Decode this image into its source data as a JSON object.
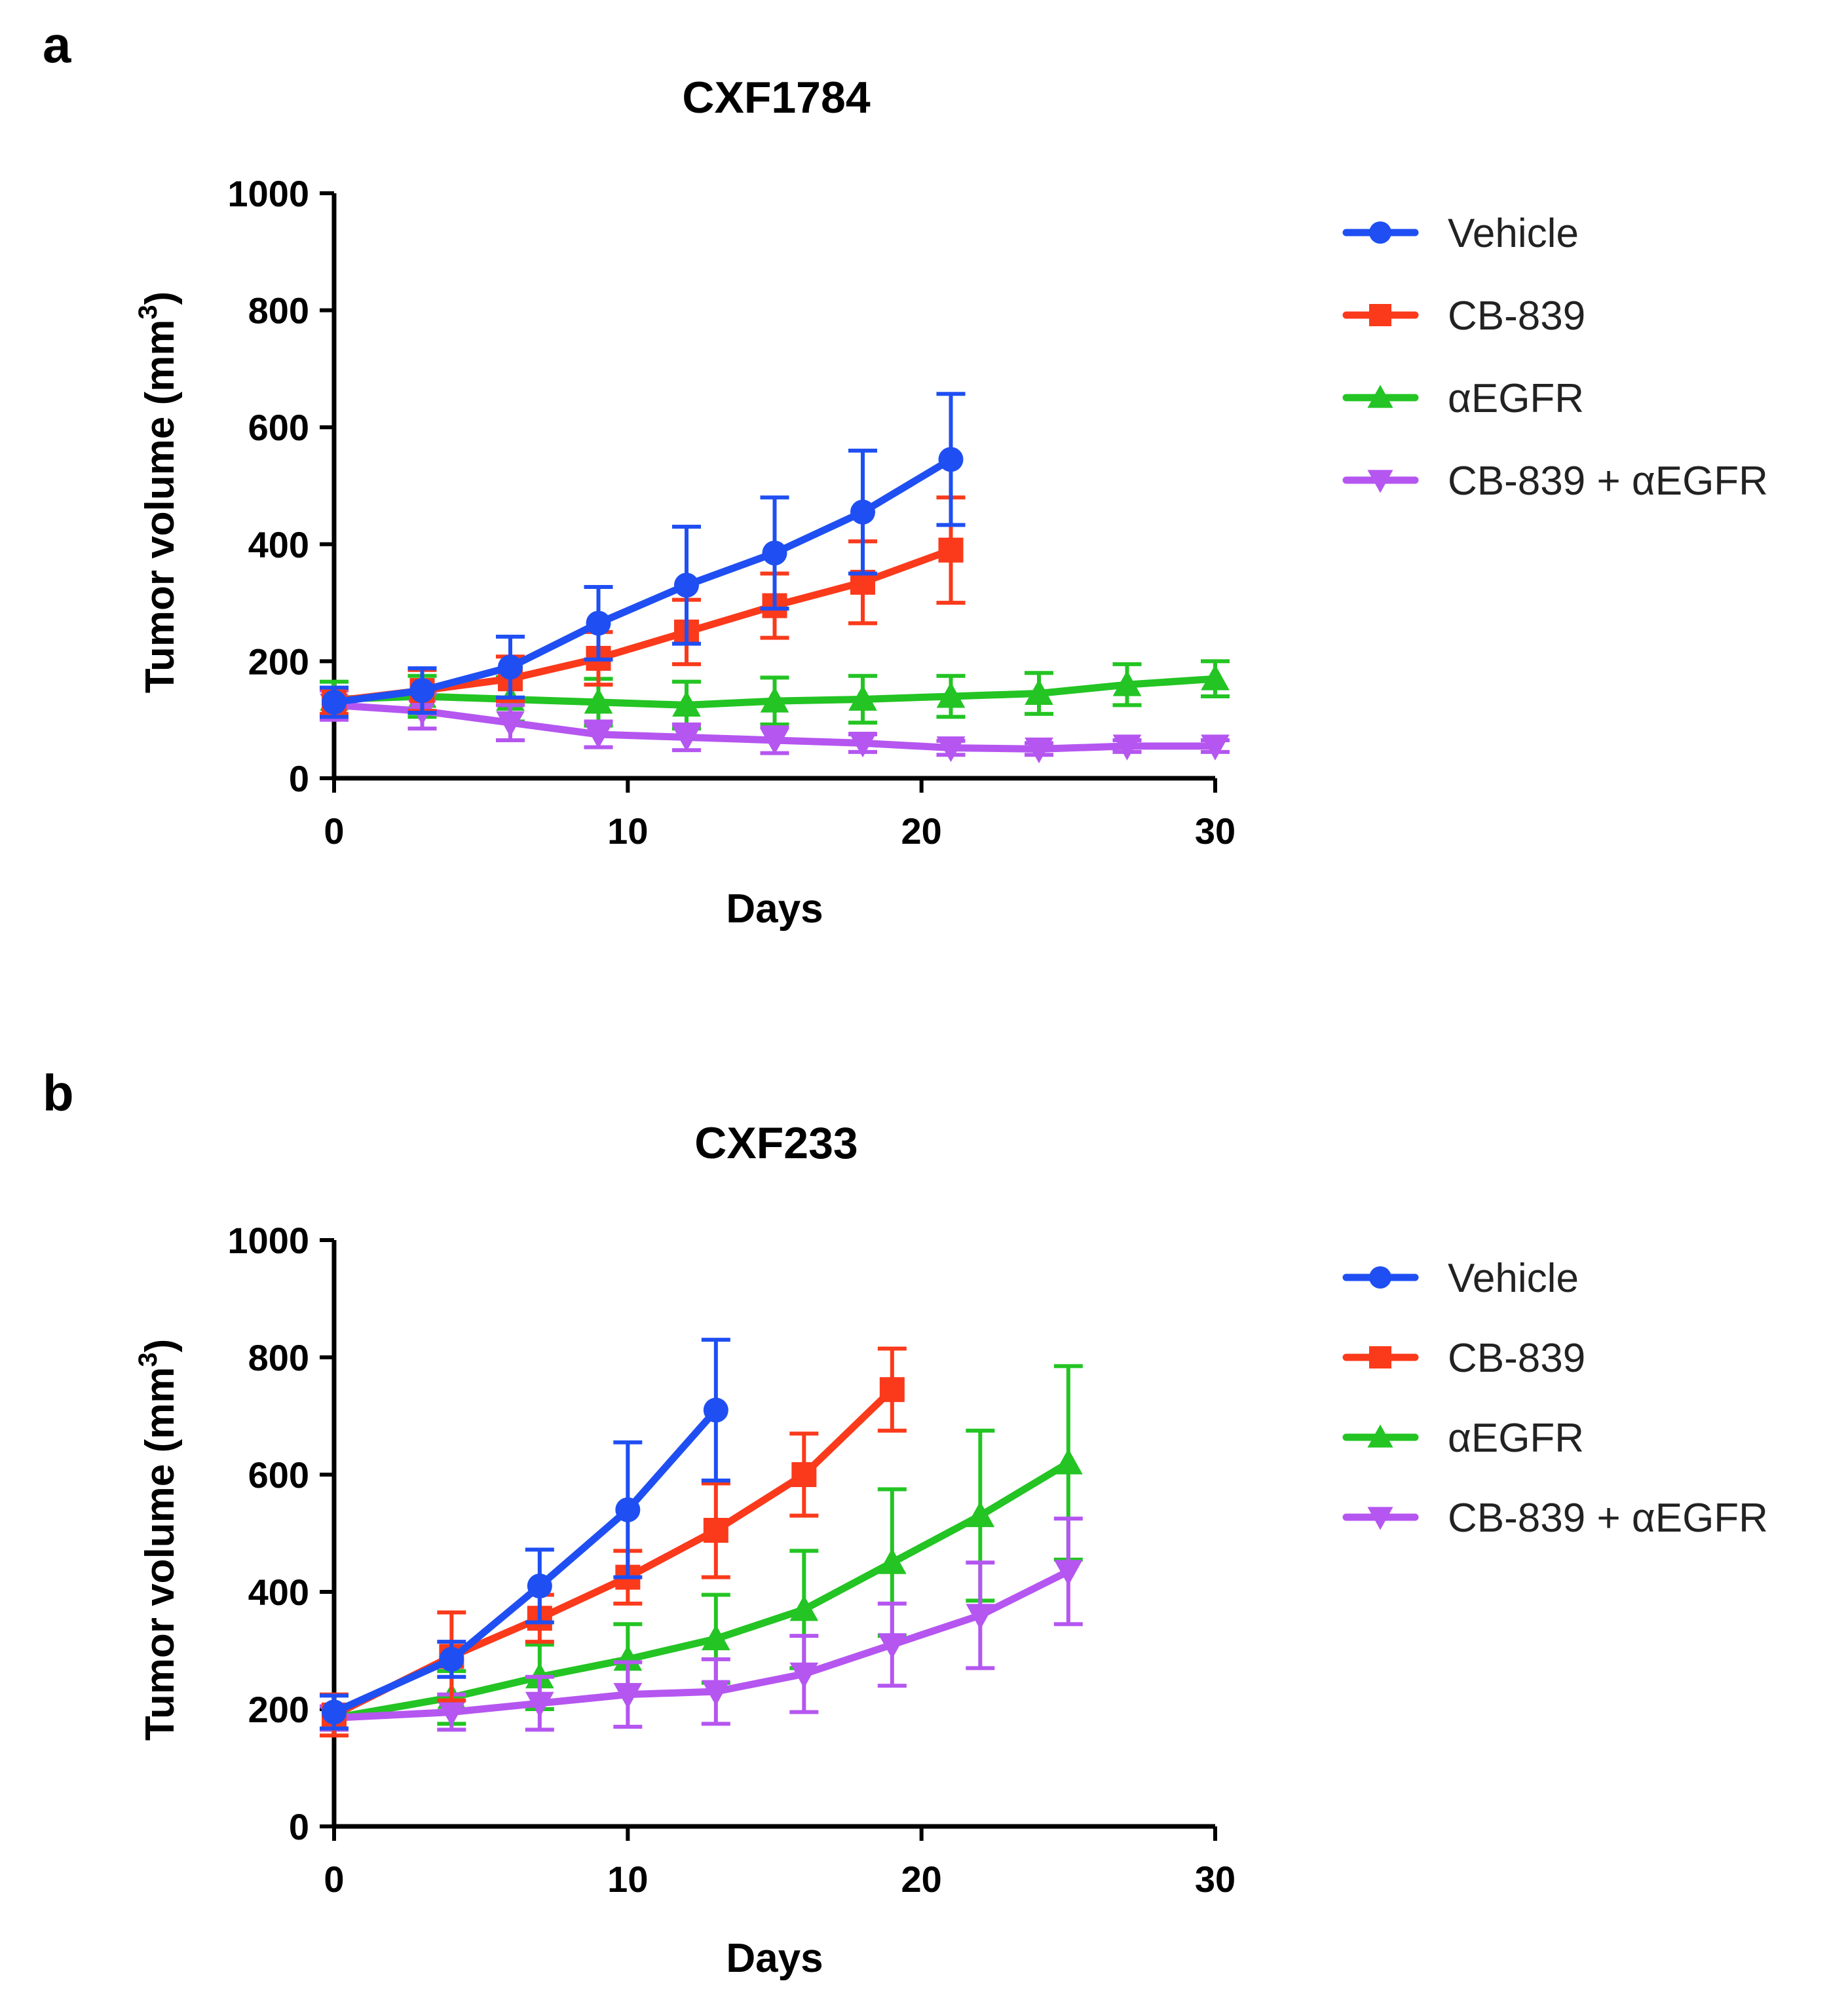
{
  "colors": {
    "vehicle": "#1f4ff2",
    "cb839": "#fa3a1b",
    "aegfr": "#23c423",
    "combo": "#b556f0",
    "axis": "#000000"
  },
  "chart_data": [
    {
      "type": "line",
      "panel_label": "a",
      "title": "CXF1784",
      "xlabel": "Days",
      "ylabel": "Tumor volume (mm",
      "ylabel_sup": "3",
      "ylabel_close": ")",
      "xlim": [
        0,
        30
      ],
      "ylim": [
        0,
        1000
      ],
      "xticks": [
        0,
        10,
        20,
        30
      ],
      "yticks": [
        0,
        200,
        400,
        600,
        800,
        1000
      ],
      "grid": false,
      "legend_position": "right",
      "series": [
        {
          "name": "Vehicle",
          "color_key": "vehicle",
          "marker": "circle",
          "x": [
            0,
            3,
            6,
            9,
            12,
            15,
            18,
            21
          ],
          "y": [
            130,
            150,
            190,
            265,
            330,
            385,
            455,
            545
          ],
          "err": [
            25,
            38,
            52,
            62,
            100,
            95,
            105,
            112
          ]
        },
        {
          "name": "CB-839",
          "color_key": "cb839",
          "marker": "square",
          "x": [
            0,
            3,
            6,
            9,
            12,
            15,
            18,
            21
          ],
          "y": [
            132,
            150,
            170,
            205,
            250,
            295,
            335,
            390
          ],
          "err": [
            22,
            35,
            38,
            45,
            55,
            55,
            70,
            90
          ]
        },
        {
          "name": "αEGFR",
          "color_key": "aegfr",
          "marker": "triangle-up",
          "x": [
            0,
            3,
            6,
            9,
            12,
            15,
            18,
            21,
            24,
            27,
            30
          ],
          "y": [
            135,
            140,
            135,
            130,
            125,
            132,
            135,
            140,
            145,
            160,
            170
          ],
          "err": [
            30,
            35,
            38,
            40,
            40,
            40,
            40,
            35,
            35,
            35,
            30
          ]
        },
        {
          "name": "CB-839 + αEGFR",
          "color_key": "combo",
          "marker": "triangle-down",
          "x": [
            0,
            3,
            6,
            9,
            12,
            15,
            18,
            21,
            24,
            27,
            30
          ],
          "y": [
            125,
            115,
            95,
            75,
            70,
            65,
            60,
            52,
            50,
            55,
            55
          ],
          "err": [
            25,
            30,
            30,
            22,
            22,
            22,
            15,
            12,
            10,
            10,
            10
          ]
        }
      ]
    },
    {
      "type": "line",
      "panel_label": "b",
      "title": "CXF233",
      "xlabel": "Days",
      "ylabel": "Tumor volume (mm",
      "ylabel_sup": "3",
      "ylabel_close": ")",
      "xlim": [
        0,
        30
      ],
      "ylim": [
        0,
        1000
      ],
      "xticks": [
        0,
        10,
        20,
        30
      ],
      "yticks": [
        0,
        200,
        400,
        600,
        800,
        1000
      ],
      "grid": false,
      "legend_position": "right",
      "series": [
        {
          "name": "Vehicle",
          "color_key": "vehicle",
          "marker": "circle",
          "x": [
            0,
            4,
            7,
            10,
            13
          ],
          "y": [
            195,
            285,
            410,
            540,
            710
          ],
          "err": [
            28,
            30,
            62,
            115,
            120
          ]
        },
        {
          "name": "CB-839",
          "color_key": "cb839",
          "marker": "square",
          "x": [
            0,
            4,
            7,
            10,
            13,
            16,
            19
          ],
          "y": [
            190,
            290,
            355,
            425,
            505,
            600,
            745
          ],
          "err": [
            35,
            75,
            40,
            45,
            80,
            70,
            70
          ]
        },
        {
          "name": "αEGFR",
          "color_key": "aegfr",
          "marker": "triangle-up",
          "x": [
            0,
            4,
            7,
            10,
            13,
            16,
            19,
            22,
            25
          ],
          "y": [
            185,
            220,
            255,
            285,
            320,
            370,
            450,
            530,
            620
          ],
          "err": [
            20,
            45,
            55,
            60,
            75,
            100,
            125,
            145,
            165
          ]
        },
        {
          "name": "CB-839 + αEGFR",
          "color_key": "combo",
          "marker": "triangle-down",
          "x": [
            0,
            4,
            7,
            10,
            13,
            16,
            19,
            22,
            25
          ],
          "y": [
            185,
            195,
            210,
            225,
            230,
            260,
            310,
            360,
            435
          ],
          "err": [
            20,
            30,
            45,
            55,
            55,
            65,
            70,
            90,
            90
          ]
        }
      ]
    }
  ]
}
